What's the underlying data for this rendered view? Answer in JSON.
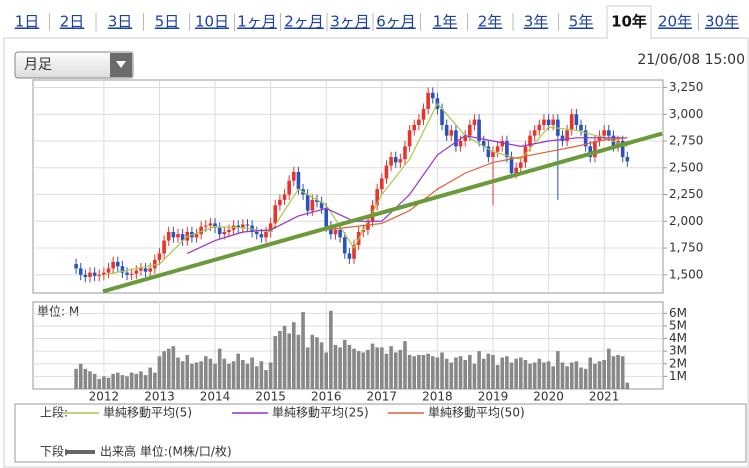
{
  "tabs": [
    "1日",
    "2日",
    "3日",
    "5日",
    "10日",
    "1ヶ月",
    "2ヶ月",
    "3ヶ月",
    "6ヶ月",
    "1年",
    "2年",
    "3年",
    "5年",
    "10年",
    "20年",
    "30年"
  ],
  "selected": 13,
  "interval": "月足",
  "timestamp": "21/06/08 15:00",
  "chart_data": [
    {
      "type": "candlestick",
      "x": [
        0,
        1,
        2,
        3,
        4,
        5,
        6,
        7,
        8,
        9,
        10,
        11,
        12,
        13,
        14,
        15,
        16,
        17,
        18,
        19,
        20,
        21,
        22,
        23,
        24,
        25,
        26,
        27,
        28,
        29,
        30,
        31,
        32,
        33,
        34,
        35,
        36,
        37,
        38,
        39,
        40,
        41,
        42,
        43,
        44,
        45,
        46,
        47,
        48,
        49,
        50,
        51,
        52,
        53,
        54,
        55,
        56,
        57,
        58,
        59,
        60,
        61,
        62,
        63,
        64,
        65,
        66,
        67,
        68,
        69,
        70,
        71,
        72,
        73,
        74,
        75,
        76,
        77,
        78,
        79,
        80,
        81,
        82,
        83,
        84,
        85,
        86,
        87,
        88,
        89,
        90,
        91,
        92,
        93,
        94,
        95,
        96,
        97,
        98,
        99,
        100,
        101,
        102,
        103,
        104,
        105,
        106,
        107,
        108,
        109,
        110,
        111,
        112,
        113,
        114,
        115,
        116,
        117,
        118,
        119
      ],
      "open": [
        1600,
        1560,
        1500,
        1480,
        1520,
        1490,
        1500,
        1520,
        1560,
        1620,
        1580,
        1520,
        1500,
        1510,
        1540,
        1560,
        1530,
        1560,
        1640,
        1700,
        1820,
        1900,
        1850,
        1880,
        1820,
        1900,
        1850,
        1880,
        1950,
        1960,
        1980,
        1940,
        1880,
        1900,
        1920,
        1960,
        1940,
        1970,
        1960,
        1900,
        1880,
        1850,
        1900,
        1980,
        2150,
        2200,
        2250,
        2380,
        2460,
        2300,
        2250,
        2100,
        2200,
        2180,
        2120,
        1950,
        1880,
        1920,
        1850,
        1700,
        1650,
        1780,
        1900,
        1920,
        2000,
        2150,
        2300,
        2400,
        2520,
        2600,
        2550,
        2580,
        2700,
        2850,
        2900,
        2950,
        3050,
        3200,
        3150,
        3050,
        2900,
        2800,
        2850,
        2700,
        2750,
        2800,
        2900,
        2950,
        2750,
        2700,
        2600,
        2650,
        2700,
        2750,
        2600,
        2450,
        2500,
        2550,
        2700,
        2800,
        2850,
        2900,
        2950,
        2900,
        2950,
        2800,
        2750,
        2850,
        3000,
        2900,
        2850,
        2700,
        2600,
        2750,
        2800,
        2850,
        2800,
        2700,
        2750,
        2600
      ],
      "high": [
        1650,
        1610,
        1550,
        1570,
        1570,
        1550,
        1570,
        1610,
        1670,
        1670,
        1630,
        1570,
        1560,
        1590,
        1610,
        1610,
        1610,
        1690,
        1750,
        1870,
        1950,
        1950,
        1930,
        1930,
        1950,
        1950,
        1930,
        2000,
        2010,
        2030,
        2030,
        1990,
        1950,
        1970,
        2010,
        2010,
        2020,
        2020,
        2010,
        1950,
        1930,
        1950,
        2030,
        2200,
        2250,
        2300,
        2430,
        2510,
        2510,
        2350,
        2300,
        2250,
        2250,
        2230,
        2170,
        2000,
        1970,
        1970,
        1900,
        1750,
        1830,
        1950,
        1970,
        2050,
        2200,
        2350,
        2450,
        2570,
        2650,
        2650,
        2630,
        2750,
        2900,
        2950,
        3000,
        3100,
        3250,
        3250,
        3200,
        3100,
        2950,
        2900,
        2900,
        2800,
        2850,
        2950,
        3000,
        3000,
        2800,
        2750,
        2700,
        2750,
        2800,
        2800,
        2650,
        2550,
        2600,
        2750,
        2850,
        2900,
        2950,
        3000,
        3000,
        3000,
        3000,
        2850,
        2900,
        3050,
        3050,
        2950,
        2900,
        2750,
        2800,
        2850,
        2900,
        2900,
        2850,
        2800,
        2800,
        2650
      ],
      "low": [
        1510,
        1450,
        1430,
        1430,
        1440,
        1440,
        1450,
        1470,
        1510,
        1530,
        1470,
        1450,
        1450,
        1460,
        1490,
        1480,
        1480,
        1510,
        1590,
        1650,
        1770,
        1800,
        1800,
        1770,
        1770,
        1800,
        1800,
        1830,
        1900,
        1910,
        1890,
        1830,
        1830,
        1850,
        1870,
        1890,
        1890,
        1910,
        1850,
        1830,
        1800,
        1800,
        1850,
        1930,
        2100,
        2150,
        2200,
        2330,
        2250,
        2200,
        2050,
        2050,
        2130,
        2070,
        1900,
        1830,
        1830,
        1800,
        1650,
        1600,
        1600,
        1730,
        1850,
        1870,
        1950,
        2100,
        2250,
        2350,
        2470,
        2500,
        2500,
        2530,
        2650,
        2800,
        2850,
        2900,
        3000,
        3100,
        3000,
        2850,
        2750,
        2750,
        2650,
        2650,
        2700,
        2750,
        2850,
        2700,
        2650,
        2550,
        2150,
        2600,
        2650,
        2550,
        2400,
        2400,
        2450,
        2500,
        2650,
        2750,
        2800,
        2850,
        2850,
        2850,
        2200,
        2700,
        2700,
        2800,
        2850,
        2800,
        2650,
        2550,
        2550,
        2700,
        2750,
        2750,
        2650,
        2650,
        2550,
        2510
      ],
      "close": [
        1560,
        1500,
        1480,
        1520,
        1490,
        1500,
        1520,
        1560,
        1620,
        1580,
        1520,
        1500,
        1510,
        1540,
        1560,
        1530,
        1560,
        1640,
        1700,
        1820,
        1900,
        1850,
        1880,
        1820,
        1900,
        1850,
        1880,
        1950,
        1960,
        1980,
        1940,
        1880,
        1900,
        1920,
        1960,
        1940,
        1970,
        1960,
        1900,
        1880,
        1850,
        1900,
        1980,
        2150,
        2200,
        2250,
        2380,
        2460,
        2300,
        2250,
        2100,
        2200,
        2180,
        2120,
        1950,
        1880,
        1920,
        1850,
        1700,
        1650,
        1780,
        1900,
        1920,
        2000,
        2150,
        2300,
        2400,
        2520,
        2600,
        2550,
        2580,
        2700,
        2850,
        2900,
        2950,
        3050,
        3200,
        3150,
        3050,
        2900,
        2800,
        2850,
        2700,
        2750,
        2800,
        2900,
        2950,
        2750,
        2700,
        2600,
        2650,
        2700,
        2750,
        2600,
        2450,
        2500,
        2550,
        2700,
        2800,
        2850,
        2900,
        2950,
        2900,
        2950,
        2800,
        2750,
        2850,
        3000,
        2900,
        2850,
        2700,
        2600,
        2750,
        2800,
        2850,
        2800,
        2700,
        2750,
        2600,
        2560
      ],
      "up_color": "#e8322b",
      "down_color": "#2a52be",
      "xlim": [
        -9.3,
        126.7
      ],
      "ylim": [
        1330,
        3320
      ],
      "yticks": [
        {
          "value": 1500,
          "label": "1,500"
        },
        {
          "value": 1750,
          "label": "1,750"
        },
        {
          "value": 2000,
          "label": "2,000"
        },
        {
          "value": 2250,
          "label": "2,250"
        },
        {
          "value": 2500,
          "label": "2,500"
        },
        {
          "value": 2750,
          "label": "2,750"
        },
        {
          "value": 3000,
          "label": "3,000"
        },
        {
          "value": 3250,
          "label": "3,250"
        }
      ],
      "grid": true,
      "legend_label": "上段:",
      "series": [
        {
          "name": "単純移動平均(5)",
          "color": "#a8c84a",
          "x": [
            6,
            12,
            18,
            24,
            30,
            36,
            42,
            48,
            54,
            60,
            66,
            72,
            78,
            84,
            90,
            96,
            102,
            108,
            114,
            119
          ],
          "values": [
            1500,
            1550,
            1600,
            1860,
            1950,
            1940,
            1900,
            2300,
            2150,
            1750,
            2250,
            2580,
            3100,
            2800,
            2650,
            2580,
            2880,
            2850,
            2780,
            2700
          ]
        },
        {
          "name": "単純移動平均(25)",
          "color": "#9932cc",
          "x": [
            24,
            30,
            36,
            42,
            48,
            54,
            60,
            66,
            72,
            78,
            84,
            90,
            96,
            102,
            108,
            114,
            119
          ],
          "values": [
            1700,
            1820,
            1900,
            1920,
            2050,
            2120,
            2000,
            2000,
            2250,
            2620,
            2800,
            2750,
            2700,
            2750,
            2780,
            2780,
            2780
          ]
        },
        {
          "name": "単純移動平均(50)",
          "color": "#e0603a",
          "x": [
            48,
            54,
            60,
            66,
            72,
            78,
            84,
            90,
            96,
            102,
            108,
            114,
            119
          ],
          "values": [
            1850,
            1920,
            1950,
            1980,
            2100,
            2300,
            2450,
            2550,
            2600,
            2650,
            2700,
            2760,
            2780
          ]
        }
      ],
      "trendline": {
        "color": "#6a9a3a",
        "x": [
          5.8,
          126.5
        ],
        "values": [
          1345,
          2820
        ]
      }
    },
    {
      "type": "bar",
      "x": [
        0,
        1,
        2,
        3,
        4,
        5,
        6,
        7,
        8,
        9,
        10,
        11,
        12,
        13,
        14,
        15,
        16,
        17,
        18,
        19,
        20,
        21,
        22,
        23,
        24,
        25,
        26,
        27,
        28,
        29,
        30,
        31,
        32,
        33,
        34,
        35,
        36,
        37,
        38,
        39,
        40,
        41,
        42,
        43,
        44,
        45,
        46,
        47,
        48,
        49,
        50,
        51,
        52,
        53,
        54,
        55,
        56,
        57,
        58,
        59,
        60,
        61,
        62,
        63,
        64,
        65,
        66,
        67,
        68,
        69,
        70,
        71,
        72,
        73,
        74,
        75,
        76,
        77,
        78,
        79,
        80,
        81,
        82,
        83,
        84,
        85,
        86,
        87,
        88,
        89,
        90,
        91,
        92,
        93,
        94,
        95,
        96,
        97,
        98,
        99,
        100,
        101,
        102,
        103,
        104,
        105,
        106,
        107,
        108,
        109,
        110,
        111,
        112,
        113,
        114,
        115,
        116,
        117,
        118,
        119
      ],
      "values": [
        1.6,
        2.0,
        1.6,
        1.4,
        1.2,
        0.8,
        1.0,
        0.9,
        1.2,
        1.3,
        1.1,
        1.0,
        1.3,
        1.2,
        1.4,
        1.1,
        1.7,
        1.3,
        2.6,
        3.0,
        3.2,
        3.4,
        2.5,
        2.2,
        2.7,
        2.0,
        2.1,
        2.2,
        2.6,
        2.4,
        2.0,
        3.2,
        2.4,
        2.0,
        2.2,
        2.8,
        2.3,
        2.0,
        2.5,
        1.8,
        2.2,
        1.5,
        2.1,
        4.2,
        4.6,
        5.0,
        4.4,
        5.3,
        4.3,
        6.1,
        3.3,
        4.3,
        4.1,
        3.7,
        2.9,
        6.2,
        3.5,
        3.3,
        3.9,
        3.5,
        3.2,
        3.0,
        2.9,
        3.1,
        3.6,
        3.3,
        3.3,
        2.8,
        3.4,
        2.9,
        3.1,
        3.8,
        2.7,
        2.6,
        2.7,
        2.7,
        2.8,
        2.6,
        2.5,
        2.9,
        2.4,
        2.1,
        2.5,
        2.6,
        2.3,
        2.7,
        2.0,
        3.0,
        2.4,
        2.8,
        2.7,
        1.9,
        2.5,
        2.6,
        2.1,
        2.4,
        2.5,
        2.3,
        2.0,
        2.1,
        2.4,
        2.1,
        2.2,
        1.8,
        3.0,
        2.1,
        1.8,
        2.1,
        2.2,
        1.7,
        1.6,
        2.5,
        2.0,
        2.2,
        2.3,
        3.2,
        2.6,
        2.7,
        2.6,
        0.5
      ],
      "color": "#888888",
      "xlim": [
        -9.3,
        126.7
      ],
      "xticks": [
        {
          "value": 6,
          "label": "2012"
        },
        {
          "value": 18,
          "label": "2013"
        },
        {
          "value": 30,
          "label": "2014"
        },
        {
          "value": 42,
          "label": "2015"
        },
        {
          "value": 54,
          "label": "2016"
        },
        {
          "value": 66,
          "label": "2017"
        },
        {
          "value": 78,
          "label": "2018"
        },
        {
          "value": 90,
          "label": "2019"
        },
        {
          "value": 102,
          "label": "2020"
        },
        {
          "value": 114,
          "label": "2021"
        }
      ],
      "ylim": [
        0,
        6.9
      ],
      "yticks": [
        {
          "value": 1,
          "label": "1M"
        },
        {
          "value": 2,
          "label": "2M"
        },
        {
          "value": 3,
          "label": "3M"
        },
        {
          "value": 4,
          "label": "4M"
        },
        {
          "value": 5,
          "label": "5M"
        },
        {
          "value": 6,
          "label": "6M"
        }
      ],
      "grid": true,
      "unit_label": "単位: M",
      "legend_label": "下段:",
      "name": "出来高 単位:(M株/口/枚)",
      "legend_color": "#666666"
    }
  ]
}
